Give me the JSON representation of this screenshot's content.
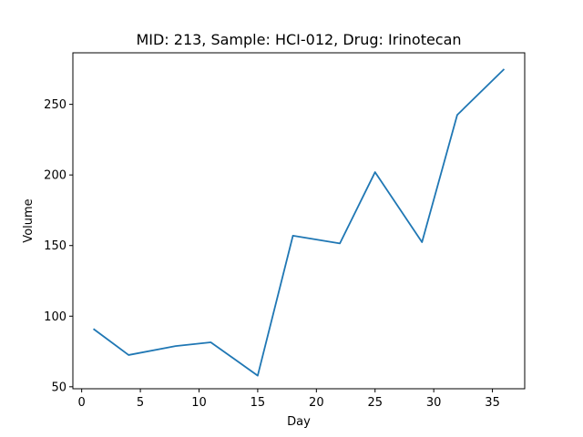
{
  "chart_data": {
    "type": "line",
    "title": "MID: 213, Sample: HCI-012, Drug: Irinotecan",
    "xlabel": "Day",
    "ylabel": "Volume",
    "xlim": [
      -0.75,
      37.75
    ],
    "ylim": [
      48.6,
      286.5
    ],
    "xticks": [
      0,
      5,
      10,
      15,
      20,
      25,
      30,
      35
    ],
    "yticks": [
      50,
      100,
      150,
      200,
      250
    ],
    "grid": false,
    "series": [
      {
        "color": "#1f77b4",
        "x": [
          1,
          4,
          8,
          11,
          15,
          18,
          22,
          25,
          29,
          32,
          36
        ],
        "y": [
          91,
          72.5,
          78.8,
          81.5,
          57.9,
          157,
          151.5,
          202,
          152.4,
          242.5,
          275
        ]
      }
    ]
  }
}
